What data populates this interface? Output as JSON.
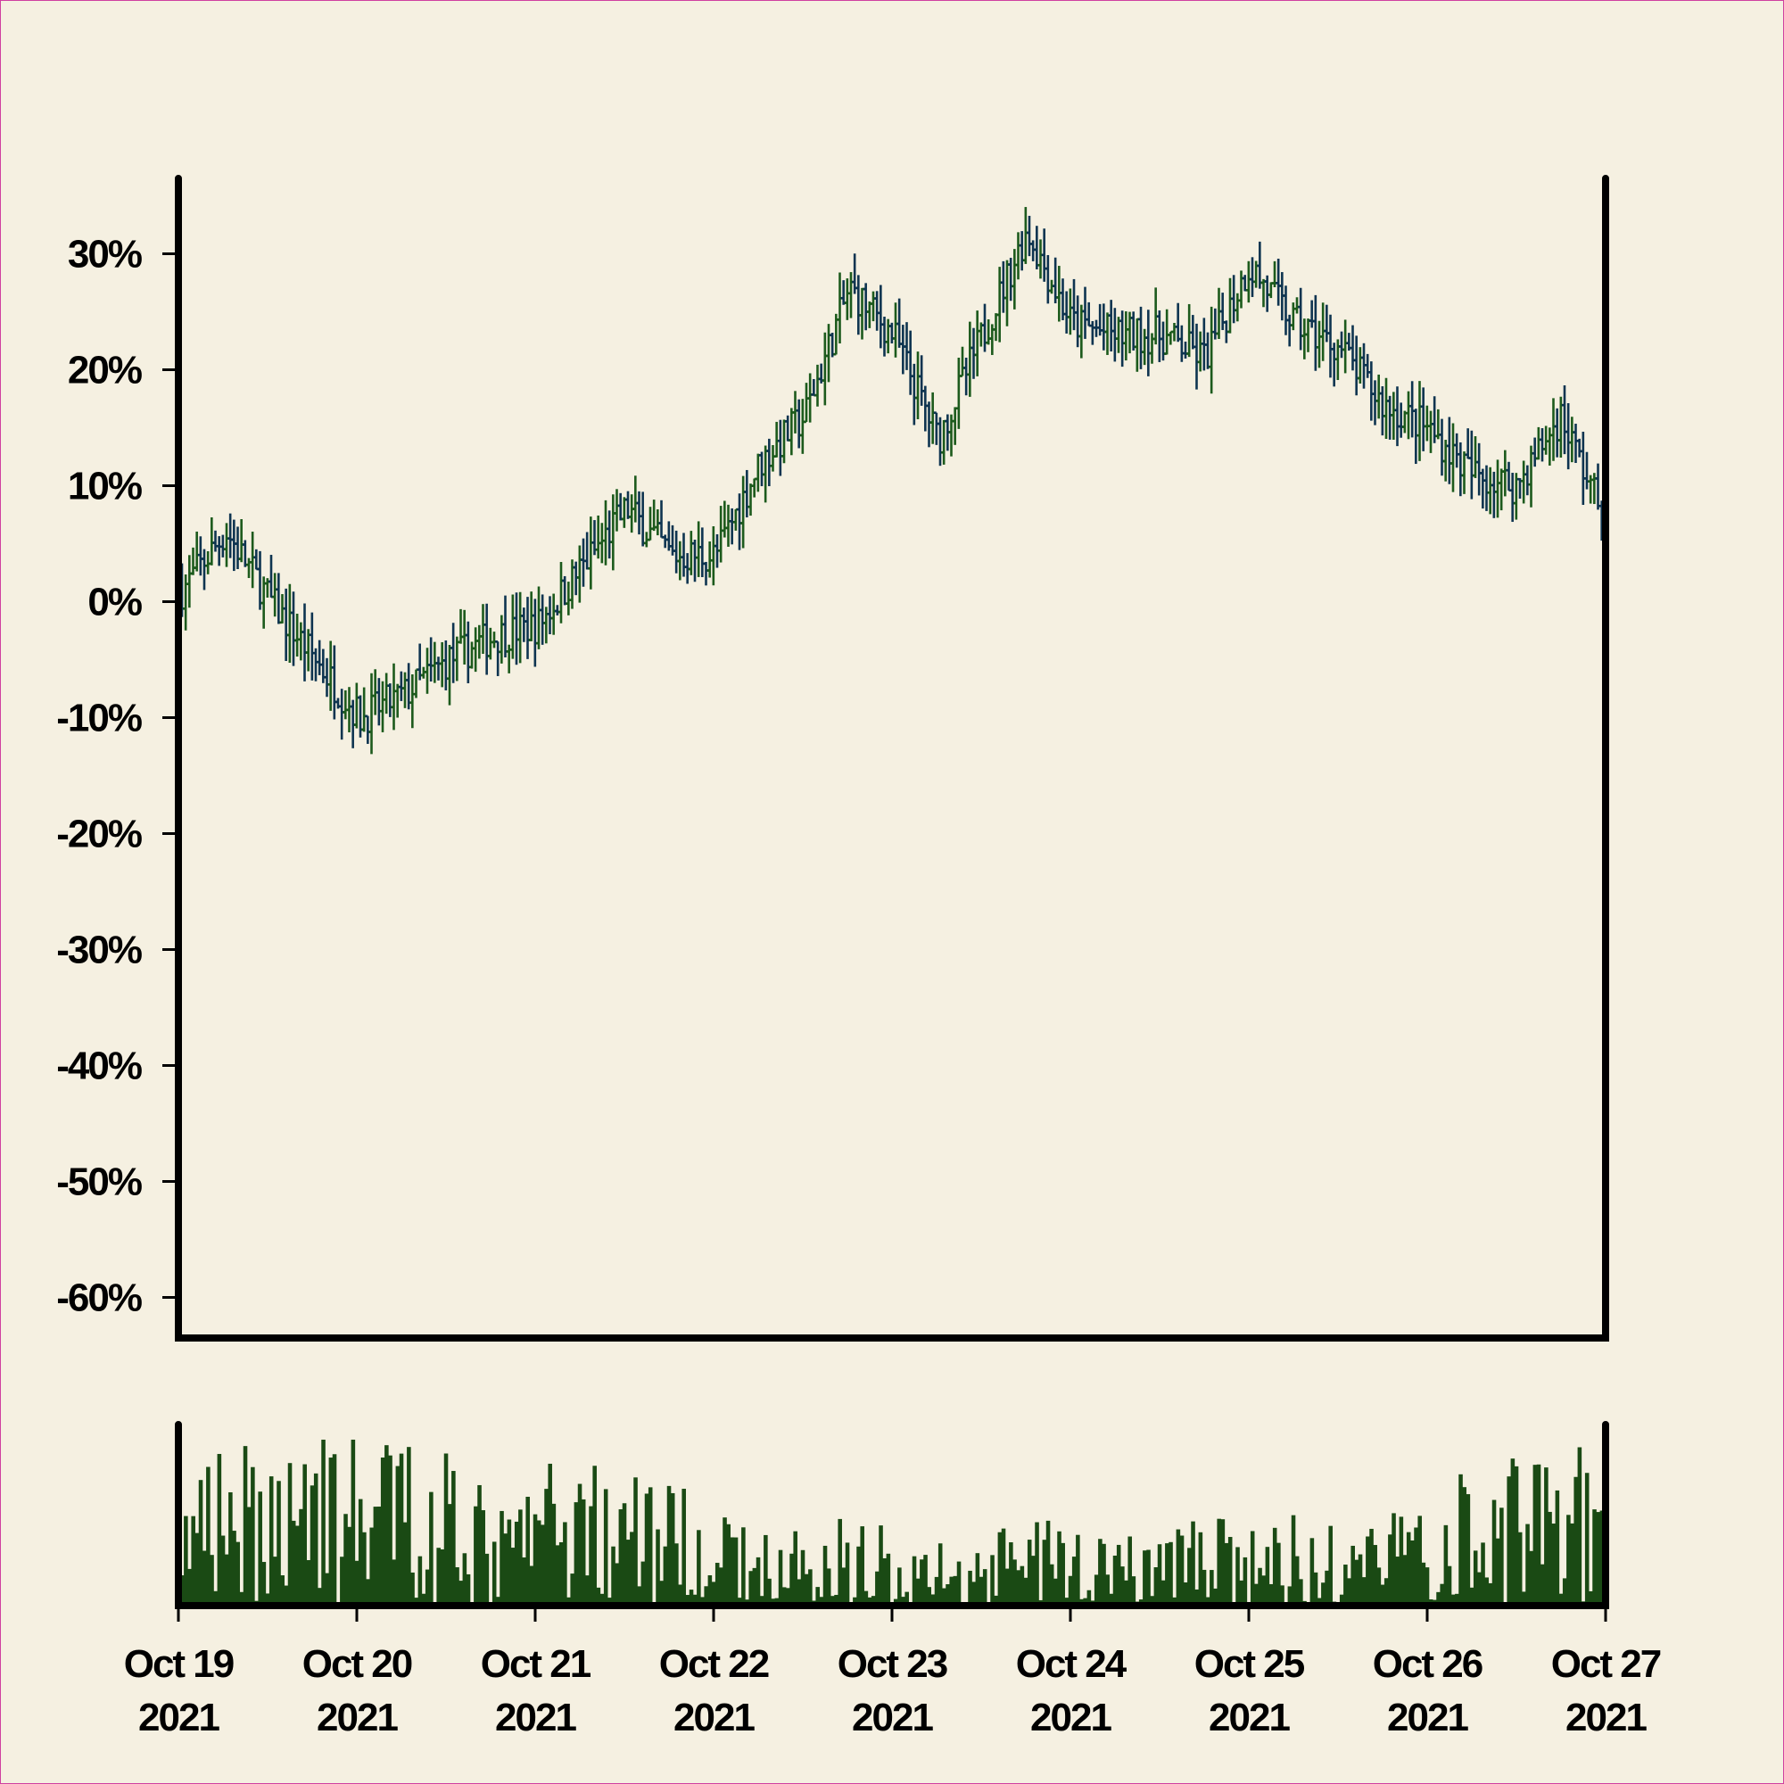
{
  "chart_data": {
    "type": "ohlc",
    "title": "",
    "xlabel": "",
    "ylabel": "",
    "y_axis": {
      "ticks": [
        30,
        20,
        10,
        0,
        -10,
        -20,
        -30,
        -40,
        -50,
        -60
      ],
      "tick_labels": [
        "30%",
        "20%",
        "10%",
        "0%",
        "-10%",
        "-20%",
        "-30%",
        "-40%",
        "-50%",
        "-60%"
      ],
      "range": [
        -63.5,
        36.5
      ],
      "unit": "percent change"
    },
    "x_axis": {
      "range": [
        "2021-10-19",
        "2021-10-27"
      ],
      "ticks": [
        {
          "line1": "Oct 19",
          "line2": "2021"
        },
        {
          "line1": "Oct 20",
          "line2": "2021"
        },
        {
          "line1": "Oct 21",
          "line2": "2021"
        },
        {
          "line1": "Oct 22",
          "line2": "2021"
        },
        {
          "line1": "Oct 23",
          "line2": "2021"
        },
        {
          "line1": "Oct 24",
          "line2": "2021"
        },
        {
          "line1": "Oct 25",
          "line2": "2021"
        },
        {
          "line1": "Oct 26",
          "line2": "2021"
        },
        {
          "line1": "Oct 27",
          "line2": "2021"
        }
      ]
    },
    "bar_interval": "30min",
    "bar_count": 384,
    "close_path": {
      "dates": [
        "2021-10-19 00:00",
        "2021-10-19 06:00",
        "2021-10-19 12:00",
        "2021-10-19 18:00",
        "2021-10-20 00:00",
        "2021-10-20 06:00",
        "2021-10-20 12:00",
        "2021-10-20 18:00",
        "2021-10-21 00:00",
        "2021-10-21 06:00",
        "2021-10-21 12:00",
        "2021-10-21 18:00",
        "2021-10-22 00:00",
        "2021-10-22 06:00",
        "2021-10-22 12:00",
        "2021-10-22 18:00",
        "2021-10-23 00:00",
        "2021-10-23 06:00",
        "2021-10-23 12:00",
        "2021-10-23 18:00",
        "2021-10-24 00:00",
        "2021-10-24 06:00",
        "2021-10-24 12:00",
        "2021-10-24 18:00",
        "2021-10-25 00:00",
        "2021-10-25 06:00",
        "2021-10-25 12:00",
        "2021-10-25 18:00",
        "2021-10-26 00:00",
        "2021-10-26 06:00",
        "2021-10-26 12:00",
        "2021-10-26 18:00",
        "2021-10-27 00:00"
      ],
      "percent": [
        1,
        6,
        0,
        -5,
        -10,
        -8,
        -5,
        -3,
        -2,
        3,
        8,
        4,
        4,
        12,
        16,
        27,
        23,
        14,
        23,
        32,
        24,
        23,
        23,
        21,
        29,
        24,
        22,
        17,
        15,
        11,
        10,
        16,
        7
      ]
    },
    "ohlc_spread_percent": 2.5,
    "volume": {
      "relative_path": [
        0.35,
        0.55,
        0.45,
        0.75,
        0.5,
        0.55,
        0.6,
        0.3,
        0.45,
        0.55,
        0.5,
        0.4,
        0.3,
        0.25,
        0.25,
        0.3,
        0.25,
        0.2,
        0.2,
        0.3,
        0.25,
        0.22,
        0.25,
        0.3,
        0.25,
        0.3,
        0.3,
        0.3,
        0.35,
        0.45,
        0.5,
        0.55,
        0.55
      ],
      "max_relative": 1.0
    },
    "colors": {
      "up": "#1c5a1c",
      "down": "#0e3450",
      "volume": "#1a4a14",
      "axis": "#000000",
      "background": "#f5f0e1"
    }
  }
}
